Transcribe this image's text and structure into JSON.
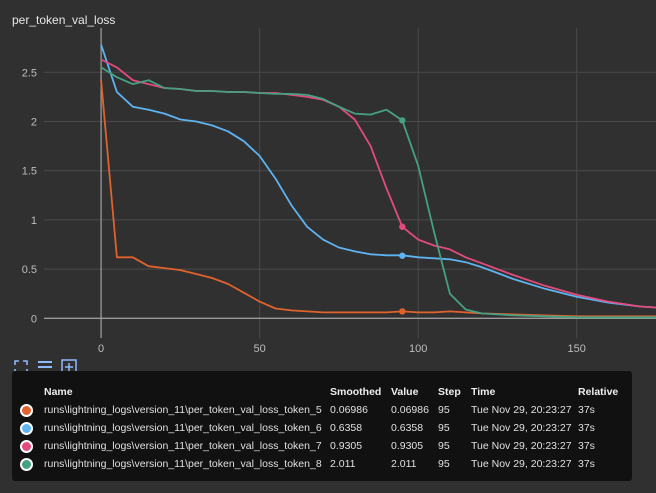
{
  "title": "per_token_val_loss",
  "chart_data": {
    "type": "line",
    "xlim": [
      -18,
      175
    ],
    "ylim": [
      -0.2,
      2.95
    ],
    "x_ticks": [
      0,
      50,
      100,
      150
    ],
    "y_ticks": [
      0,
      0.5,
      1,
      1.5,
      2,
      2.5
    ],
    "x_tick_labels": [
      "0",
      "50",
      "100",
      "150"
    ],
    "y_tick_labels": [
      "0",
      "0.5",
      "1",
      "1.5",
      "2",
      "2.5"
    ],
    "grid": true,
    "series": [
      {
        "name": "runs\\lightning_logs\\version_11\\per_token_val_loss_token_5",
        "color": "#e0622d",
        "points": [
          [
            0,
            2.42
          ],
          [
            5,
            0.62
          ],
          [
            10,
            0.62
          ],
          [
            15,
            0.53
          ],
          [
            20,
            0.51
          ],
          [
            25,
            0.49
          ],
          [
            30,
            0.45
          ],
          [
            35,
            0.41
          ],
          [
            40,
            0.35
          ],
          [
            45,
            0.26
          ],
          [
            50,
            0.17
          ],
          [
            55,
            0.1
          ],
          [
            60,
            0.08
          ],
          [
            65,
            0.07
          ],
          [
            70,
            0.06
          ],
          [
            80,
            0.06
          ],
          [
            90,
            0.06
          ],
          [
            95,
            0.07
          ],
          [
            100,
            0.06
          ],
          [
            105,
            0.06
          ],
          [
            110,
            0.07
          ],
          [
            115,
            0.06
          ],
          [
            120,
            0.05
          ],
          [
            130,
            0.04
          ],
          [
            140,
            0.03
          ],
          [
            150,
            0.02
          ],
          [
            160,
            0.02
          ],
          [
            175,
            0.02
          ]
        ],
        "marker": [
          95,
          0.06986
        ]
      },
      {
        "name": "runs\\lightning_logs\\version_11\\per_token_val_loss_token_6",
        "color": "#5eb3f0",
        "points": [
          [
            0,
            2.78
          ],
          [
            5,
            2.3
          ],
          [
            10,
            2.15
          ],
          [
            15,
            2.12
          ],
          [
            20,
            2.08
          ],
          [
            25,
            2.02
          ],
          [
            30,
            2.0
          ],
          [
            35,
            1.96
          ],
          [
            40,
            1.9
          ],
          [
            45,
            1.8
          ],
          [
            50,
            1.65
          ],
          [
            55,
            1.42
          ],
          [
            60,
            1.15
          ],
          [
            65,
            0.93
          ],
          [
            70,
            0.8
          ],
          [
            75,
            0.72
          ],
          [
            80,
            0.68
          ],
          [
            85,
            0.65
          ],
          [
            90,
            0.64
          ],
          [
            95,
            0.64
          ],
          [
            100,
            0.62
          ],
          [
            105,
            0.61
          ],
          [
            110,
            0.6
          ],
          [
            115,
            0.57
          ],
          [
            120,
            0.52
          ],
          [
            125,
            0.46
          ],
          [
            130,
            0.4
          ],
          [
            140,
            0.3
          ],
          [
            150,
            0.22
          ],
          [
            160,
            0.16
          ],
          [
            170,
            0.12
          ],
          [
            175,
            0.11
          ]
        ],
        "marker": [
          95,
          0.6358
        ]
      },
      {
        "name": "runs\\lightning_logs\\version_11\\per_token_val_loss_token_7",
        "color": "#e34b7e",
        "points": [
          [
            0,
            2.63
          ],
          [
            5,
            2.55
          ],
          [
            10,
            2.42
          ],
          [
            15,
            2.38
          ],
          [
            20,
            2.34
          ],
          [
            25,
            2.33
          ],
          [
            30,
            2.31
          ],
          [
            35,
            2.31
          ],
          [
            40,
            2.3
          ],
          [
            45,
            2.3
          ],
          [
            50,
            2.29
          ],
          [
            55,
            2.29
          ],
          [
            60,
            2.27
          ],
          [
            65,
            2.25
          ],
          [
            70,
            2.22
          ],
          [
            75,
            2.15
          ],
          [
            80,
            2.02
          ],
          [
            85,
            1.75
          ],
          [
            90,
            1.32
          ],
          [
            95,
            0.93
          ],
          [
            100,
            0.8
          ],
          [
            105,
            0.74
          ],
          [
            110,
            0.7
          ],
          [
            115,
            0.62
          ],
          [
            120,
            0.56
          ],
          [
            130,
            0.44
          ],
          [
            140,
            0.33
          ],
          [
            150,
            0.24
          ],
          [
            160,
            0.17
          ],
          [
            170,
            0.12
          ],
          [
            175,
            0.11
          ]
        ],
        "marker": [
          95,
          0.9305
        ]
      },
      {
        "name": "runs\\lightning_logs\\version_11\\per_token_val_loss_token_8",
        "color": "#46a084",
        "points": [
          [
            0,
            2.55
          ],
          [
            5,
            2.45
          ],
          [
            10,
            2.38
          ],
          [
            15,
            2.42
          ],
          [
            20,
            2.34
          ],
          [
            25,
            2.33
          ],
          [
            30,
            2.31
          ],
          [
            35,
            2.31
          ],
          [
            40,
            2.3
          ],
          [
            45,
            2.3
          ],
          [
            50,
            2.29
          ],
          [
            55,
            2.28
          ],
          [
            60,
            2.28
          ],
          [
            65,
            2.27
          ],
          [
            70,
            2.23
          ],
          [
            75,
            2.15
          ],
          [
            80,
            2.08
          ],
          [
            85,
            2.07
          ],
          [
            90,
            2.12
          ],
          [
            95,
            2.011
          ],
          [
            100,
            1.55
          ],
          [
            105,
            0.88
          ],
          [
            110,
            0.25
          ],
          [
            115,
            0.09
          ],
          [
            120,
            0.05
          ],
          [
            130,
            0.03
          ],
          [
            140,
            0.02
          ],
          [
            150,
            0.01
          ],
          [
            175,
            0.01
          ]
        ],
        "marker": [
          95,
          2.011
        ]
      }
    ]
  },
  "toolbar": {
    "icons": [
      "expand-icon",
      "data-table-icon",
      "fit-domain-icon"
    ]
  },
  "table": {
    "headers": [
      "Name",
      "Smoothed",
      "Value",
      "Step",
      "Time",
      "Relative"
    ],
    "rows": [
      {
        "color": "#e0622d",
        "name": "runs\\lightning_logs\\version_11\\per_token_val_loss_token_5",
        "smoothed": "0.06986",
        "value": "0.06986",
        "step": "95",
        "time": "Tue Nov 29, 20:23:27",
        "relative": "37s"
      },
      {
        "color": "#5eb3f0",
        "name": "runs\\lightning_logs\\version_11\\per_token_val_loss_token_6",
        "smoothed": "0.6358",
        "value": "0.6358",
        "step": "95",
        "time": "Tue Nov 29, 20:23:27",
        "relative": "37s"
      },
      {
        "color": "#e34b7e",
        "name": "runs\\lightning_logs\\version_11\\per_token_val_loss_token_7",
        "smoothed": "0.9305",
        "value": "0.9305",
        "step": "95",
        "time": "Tue Nov 29, 20:23:27",
        "relative": "37s"
      },
      {
        "color": "#46a084",
        "name": "runs\\lightning_logs\\version_11\\per_token_val_loss_token_8",
        "smoothed": "2.011",
        "value": "2.011",
        "step": "95",
        "time": "Tue Nov 29, 20:23:27",
        "relative": "37s"
      }
    ]
  }
}
